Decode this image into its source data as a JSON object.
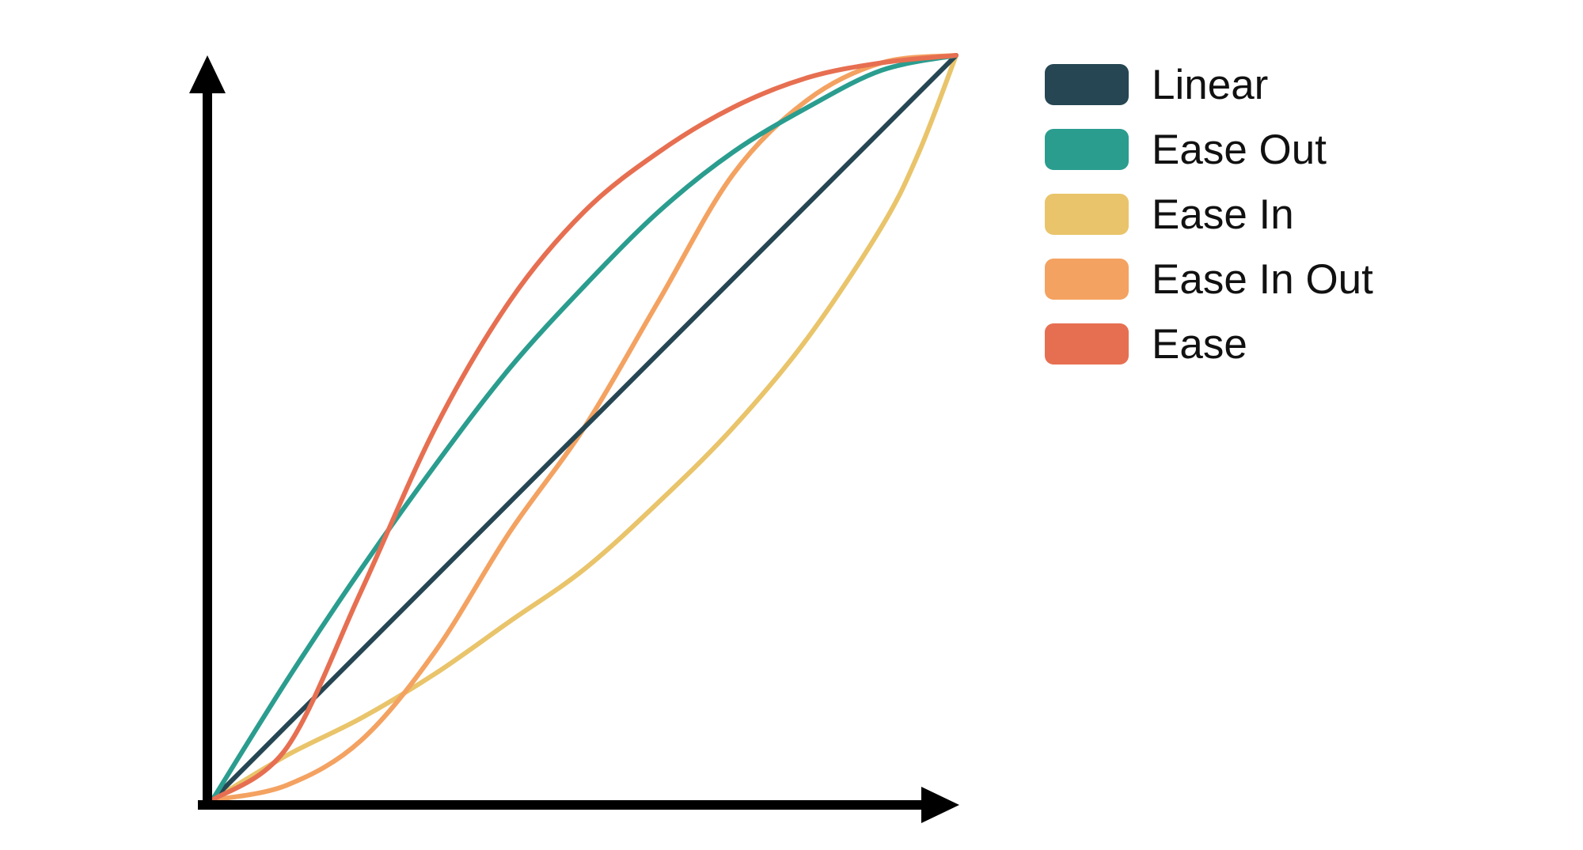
{
  "chart_data": {
    "type": "line",
    "title": "",
    "xlabel": "",
    "ylabel": "",
    "xlim": [
      0,
      1
    ],
    "ylim": [
      0,
      1
    ],
    "grid": false,
    "legend_position": "top-right",
    "axis_color": "#000000",
    "series": [
      {
        "name": "Linear",
        "color": "#264653",
        "x": [
          0,
          0.1,
          0.2,
          0.3,
          0.4,
          0.5,
          0.6,
          0.7,
          0.8,
          0.9,
          1
        ],
        "y": [
          0,
          0.1,
          0.2,
          0.3,
          0.4,
          0.5,
          0.6,
          0.7,
          0.8,
          0.9,
          1
        ]
      },
      {
        "name": "Ease Out",
        "color": "#2a9d8f",
        "x": [
          0,
          0.1,
          0.2,
          0.3,
          0.4,
          0.5,
          0.6,
          0.7,
          0.8,
          0.9,
          1
        ],
        "y": [
          0,
          0.16,
          0.31,
          0.45,
          0.58,
          0.69,
          0.79,
          0.87,
          0.93,
          0.98,
          1
        ]
      },
      {
        "name": "Ease In",
        "color": "#e9c46a",
        "x": [
          0,
          0.1,
          0.2,
          0.3,
          0.4,
          0.5,
          0.6,
          0.7,
          0.8,
          0.9,
          0.95,
          1
        ],
        "y": [
          0,
          0.06,
          0.11,
          0.17,
          0.24,
          0.31,
          0.4,
          0.5,
          0.62,
          0.77,
          0.87,
          1
        ]
      },
      {
        "name": "Ease In Out",
        "color": "#f4a261",
        "x": [
          0,
          0.1,
          0.2,
          0.3,
          0.4,
          0.5,
          0.6,
          0.7,
          0.8,
          0.9,
          1
        ],
        "y": [
          0,
          0.02,
          0.08,
          0.2,
          0.36,
          0.5,
          0.67,
          0.84,
          0.94,
          0.99,
          1
        ]
      },
      {
        "name": "Ease",
        "color": "#e76f51",
        "x": [
          0,
          0.1,
          0.2,
          0.3,
          0.4,
          0.5,
          0.6,
          0.7,
          0.8,
          0.9,
          1
        ],
        "y": [
          0,
          0.07,
          0.28,
          0.5,
          0.67,
          0.79,
          0.87,
          0.93,
          0.97,
          0.99,
          1
        ]
      }
    ]
  }
}
